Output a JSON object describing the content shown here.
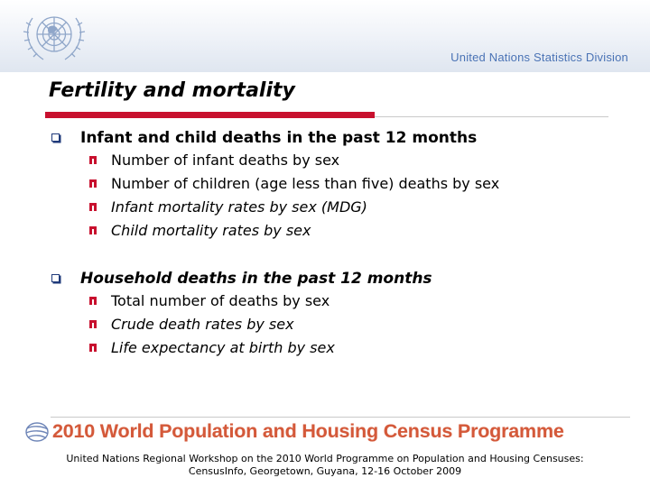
{
  "header": {
    "division": "United Nations Statistics Division"
  },
  "slide": {
    "title": "Fertility and mortality",
    "sections": [
      {
        "heading": "Infant and child deaths in the past 12 months",
        "items": [
          "Number of infant deaths by sex",
          "Number of children (age less than five) deaths by sex",
          "Infant mortality rates by sex (MDG)",
          "Child mortality rates by sex"
        ]
      },
      {
        "heading": "Household deaths in the past 12 months",
        "items": [
          "Total number of deaths by sex",
          "Crude death rates by sex",
          "Life expectancy at birth by sex"
        ]
      }
    ]
  },
  "banner": {
    "text": "2010 World Population and Housing Census Programme"
  },
  "footer": {
    "line1": "United Nations Regional Workshop on the 2010 World Programme on Population and Housing Censuses:",
    "line2": "CensusInfo, Georgetown, Guyana, 12-16 October 2009"
  },
  "colors": {
    "accent_red": "#c8102e",
    "un_blue": "#4a73b5",
    "bullet_blue": "#1f3a7a",
    "banner_orange": "#d4593a"
  },
  "icons": [
    "un-emblem-icon",
    "square-bullet-icon",
    "n-bullet-icon",
    "globe-icon"
  ]
}
